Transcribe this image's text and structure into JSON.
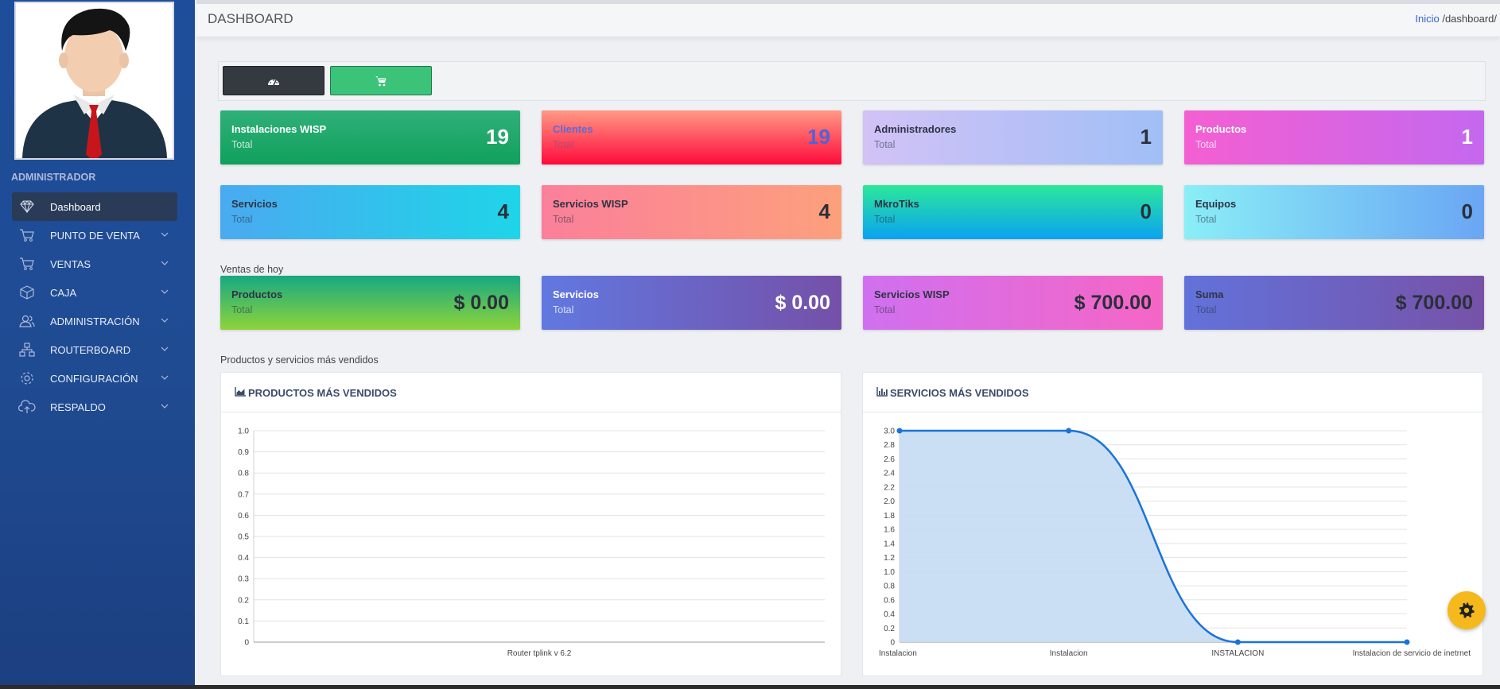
{
  "sidebar": {
    "role": "ADMINISTRADOR",
    "items": [
      {
        "label": "Dashboard",
        "icon": "diamond-icon",
        "active": true
      },
      {
        "label": "PUNTO DE VENTA",
        "icon": "cart-icon"
      },
      {
        "label": "VENTAS",
        "icon": "cart-icon"
      },
      {
        "label": "CAJA",
        "icon": "box-icon"
      },
      {
        "label": "ADMINISTRACIÓN",
        "icon": "users-icon"
      },
      {
        "label": "ROUTERBOARD",
        "icon": "network-icon"
      },
      {
        "label": "CONFIGURACIÓN",
        "icon": "gear-icon"
      },
      {
        "label": "RESPALDO",
        "icon": "cloud-upload-icon"
      }
    ]
  },
  "header": {
    "title": "DASHBOARD",
    "breadcrumb_home": "Inicio",
    "breadcrumb_path": " /dashboard/"
  },
  "toolbar": {
    "buttons": [
      {
        "icon": "dashboard-gauge-icon",
        "color": "#343a40"
      },
      {
        "icon": "cart-icon",
        "color": "#3cc37a"
      }
    ]
  },
  "stats": [
    {
      "title": "Instalaciones WISP",
      "sub": "Total",
      "value": "19"
    },
    {
      "title": "Clientes",
      "sub": "Total",
      "value": "19"
    },
    {
      "title": "Administradores",
      "sub": "Total",
      "value": "1"
    },
    {
      "title": "Productos",
      "sub": "Total",
      "value": "1"
    },
    {
      "title": "Servicios",
      "sub": "Total",
      "value": "4"
    },
    {
      "title": "Servicios WISP",
      "sub": "Total",
      "value": "4"
    },
    {
      "title": "MkroTiks",
      "sub": "Total",
      "value": "0"
    },
    {
      "title": "Equipos",
      "sub": "Total",
      "value": "0"
    }
  ],
  "today_label": "Ventas de hoy",
  "today": [
    {
      "title": "Productos",
      "sub": "Total",
      "value": "$ 0.00"
    },
    {
      "title": "Servicios",
      "sub": "Total",
      "value": "$ 0.00"
    },
    {
      "title": "Servicios WISP",
      "sub": "Total",
      "value": "$ 700.00"
    },
    {
      "title": "Suma",
      "sub": "Total",
      "value": "$ 700.00"
    }
  ],
  "top_label": "Productos y servicios más vendidos",
  "colors": {
    "line": "#1a73d9",
    "area": "#c5dcf3"
  },
  "chart_data": [
    {
      "type": "bar",
      "title": "PRODUCTOS MÁS VENDIDOS",
      "categories": [
        "Router tplink v 6.2"
      ],
      "values": [
        0
      ],
      "ylim": [
        0,
        1.0
      ],
      "yticks": [
        "0",
        "0.1",
        "0.2",
        "0.3",
        "0.4",
        "0.5",
        "0.6",
        "0.7",
        "0.8",
        "0.9",
        "1.0"
      ],
      "grid": true
    },
    {
      "type": "area",
      "title": "SERVICIOS MÁS VENDIDOS",
      "categories": [
        "Instalacion",
        "Instalacion",
        "INSTALACION",
        "Instalacion de servicio de inetrnet"
      ],
      "values": [
        3,
        3,
        0,
        0
      ],
      "ylim": [
        0,
        3.0
      ],
      "yticks": [
        "0",
        "0.2",
        "0.4",
        "0.6",
        "0.8",
        "1.0",
        "1.2",
        "1.4",
        "1.6",
        "1.8",
        "2.0",
        "2.2",
        "2.4",
        "2.6",
        "2.8",
        "3.0"
      ],
      "grid": true
    }
  ]
}
